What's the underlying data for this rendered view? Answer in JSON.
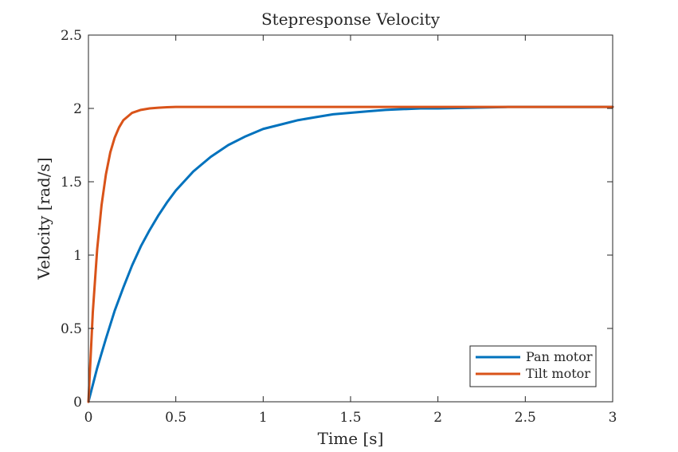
{
  "chart_data": {
    "type": "line",
    "title": "Stepresponse Velocity",
    "xlabel": "Time [s]",
    "ylabel": "Velocity [rad/s]",
    "xlim": [
      0,
      3
    ],
    "ylim": [
      0,
      2.5
    ],
    "xticks": [
      0,
      0.5,
      1,
      1.5,
      2,
      2.5,
      3
    ],
    "xtick_labels": [
      "0",
      "0.5",
      "1",
      "1.5",
      "2",
      "2.5",
      "3"
    ],
    "yticks": [
      0,
      0.5,
      1,
      1.5,
      2,
      2.5
    ],
    "ytick_labels": [
      "0",
      "0.5",
      "1",
      "1.5",
      "2",
      "2.5"
    ],
    "grid": false,
    "legend_position": "bottom-right",
    "series": [
      {
        "name": "Pan motor",
        "color": "#0072bd",
        "x": [
          0,
          0.05,
          0.1,
          0.15,
          0.2,
          0.25,
          0.3,
          0.35,
          0.4,
          0.45,
          0.5,
          0.6,
          0.7,
          0.8,
          0.9,
          1.0,
          1.1,
          1.2,
          1.3,
          1.4,
          1.5,
          1.6,
          1.7,
          1.8,
          1.9,
          2.0,
          2.2,
          2.4,
          2.6,
          2.8,
          3.0
        ],
        "values": [
          0,
          0.23,
          0.43,
          0.62,
          0.78,
          0.93,
          1.06,
          1.17,
          1.27,
          1.36,
          1.44,
          1.57,
          1.67,
          1.75,
          1.81,
          1.86,
          1.89,
          1.92,
          1.94,
          1.96,
          1.97,
          1.98,
          1.99,
          1.995,
          2.0,
          2.0,
          2.005,
          2.01,
          2.01,
          2.01,
          2.01
        ]
      },
      {
        "name": "Tilt motor",
        "color": "#d95319",
        "x": [
          0,
          0.025,
          0.05,
          0.075,
          0.1,
          0.125,
          0.15,
          0.175,
          0.2,
          0.25,
          0.3,
          0.35,
          0.4,
          0.45,
          0.5,
          0.6,
          0.7,
          0.8,
          1.0,
          1.5,
          2.0,
          2.5,
          3.0
        ],
        "values": [
          0,
          0.61,
          1.04,
          1.34,
          1.55,
          1.7,
          1.8,
          1.87,
          1.92,
          1.97,
          1.99,
          2.0,
          2.005,
          2.008,
          2.01,
          2.01,
          2.01,
          2.01,
          2.01,
          2.01,
          2.01,
          2.01,
          2.01
        ]
      }
    ]
  }
}
